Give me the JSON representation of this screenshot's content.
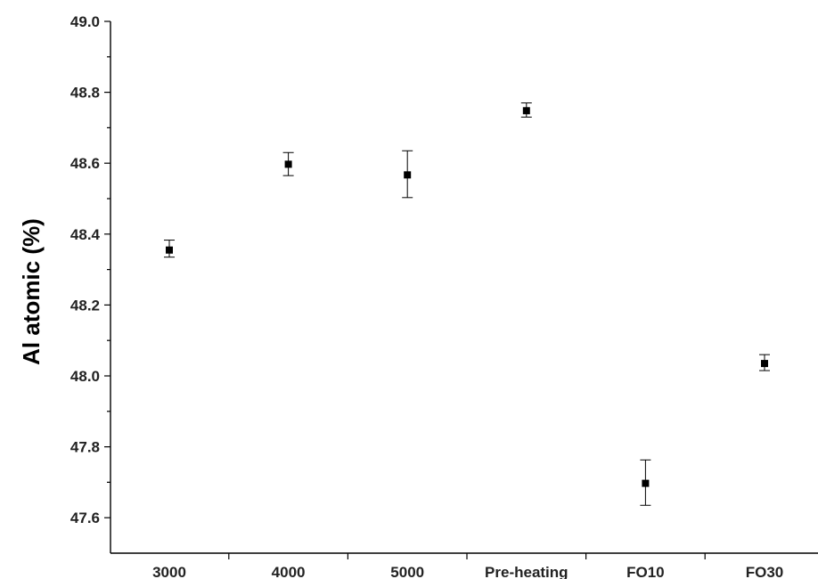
{
  "chart_data": {
    "type": "scatter",
    "title": "",
    "xlabel": "",
    "ylabel": "Al atomic (%)",
    "ylim": [
      47.5,
      49.0
    ],
    "categories": [
      "3000",
      "4000",
      "5000",
      "Pre-heating",
      "FO10",
      "FO30"
    ],
    "y_ticks": [
      "47.6",
      "47.8",
      "48.0",
      "48.2",
      "48.4",
      "48.6",
      "48.8",
      "49.0"
    ],
    "series": [
      {
        "values": [
          48.355,
          48.597,
          48.567,
          48.748,
          47.697,
          48.035
        ],
        "error_low": [
          48.335,
          48.565,
          48.503,
          48.73,
          47.635,
          48.015
        ],
        "error_high": [
          48.383,
          48.63,
          48.635,
          48.77,
          47.763,
          48.06
        ],
        "marker": "square",
        "color": "#000000"
      }
    ],
    "grid": false,
    "legend": "none"
  }
}
